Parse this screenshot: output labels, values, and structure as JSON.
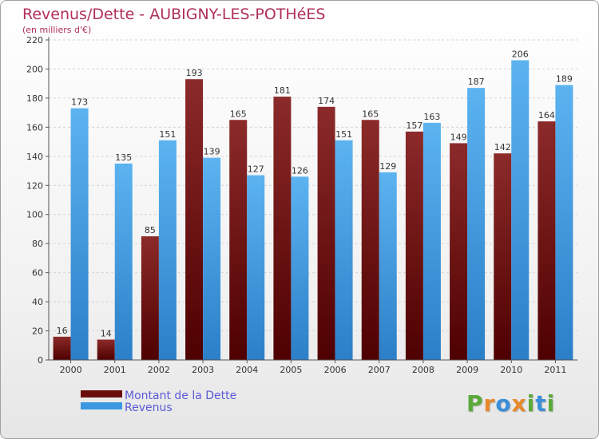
{
  "chart_data": {
    "type": "bar",
    "title": "Revenus/Dette - AUBIGNY-LES-POTHéES",
    "subtitle": "(en milliers d'€)",
    "xlabel": "",
    "ylabel": "",
    "ylim": [
      0,
      220
    ],
    "yticks": [
      0,
      20,
      40,
      60,
      80,
      100,
      120,
      140,
      160,
      180,
      200,
      220
    ],
    "grid": true,
    "legend_position": "bottom-left",
    "categories": [
      "2000",
      "2001",
      "2002",
      "2003",
      "2004",
      "2005",
      "2006",
      "2007",
      "2008",
      "2009",
      "2010",
      "2011"
    ],
    "series": [
      {
        "name": "Montant de la Dette",
        "color": "#7a1414",
        "values": [
          16,
          14,
          85,
          193,
          165,
          181,
          174,
          165,
          157,
          149,
          142,
          164
        ]
      },
      {
        "name": "Revenus",
        "color": "#3a98e0",
        "values": [
          173,
          135,
          151,
          139,
          127,
          126,
          151,
          129,
          163,
          187,
          206,
          189
        ]
      }
    ]
  },
  "logo": {
    "text": "Proxiti",
    "letters": [
      "P",
      "r",
      "o",
      "x",
      "i",
      "t",
      "i"
    ],
    "colors": [
      "#5aaa3a",
      "#e7892a",
      "#3b8fd8",
      "#e7892a",
      "#5aaa3a",
      "#3b8fd8",
      "#5aaa3a"
    ]
  }
}
